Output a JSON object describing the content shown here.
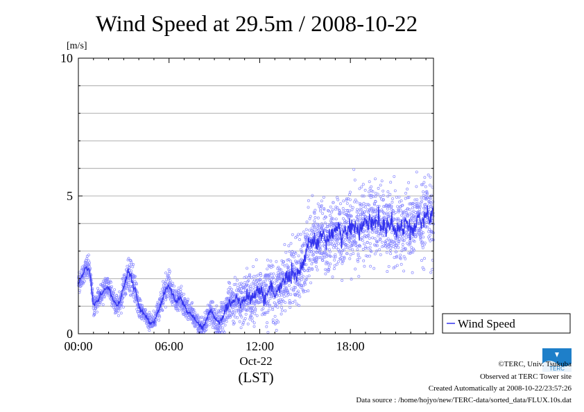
{
  "chart_data": {
    "type": "scatter",
    "title": "Wind Speed at 29.5m / 2008-10-22",
    "ylabel": "[m/s]",
    "ylim": [
      0,
      10
    ],
    "y_ticks": [
      0,
      5,
      10
    ],
    "x_range_hours": [
      0,
      23.5
    ],
    "x_ticks": [
      {
        "hour": 0,
        "label": "00:00"
      },
      {
        "hour": 6,
        "label": "06:00"
      },
      {
        "hour": 12,
        "label": "12:00"
      },
      {
        "hour": 18,
        "label": "18:00"
      }
    ],
    "date_label": "Oct-22",
    "time_zone_label": "(LST)",
    "grid": true,
    "legend": {
      "position": "right",
      "entries": [
        "Wind Speed"
      ]
    },
    "series": [
      {
        "name": "Wind Speed",
        "style": "line over 10-second scatter points",
        "hours": [
          0.0,
          0.25,
          0.5,
          0.75,
          1.0,
          1.25,
          1.5,
          1.75,
          2.0,
          2.25,
          2.5,
          2.75,
          3.0,
          3.25,
          3.5,
          3.75,
          4.0,
          4.25,
          4.5,
          4.75,
          5.0,
          5.25,
          5.5,
          5.75,
          6.0,
          6.25,
          6.5,
          6.75,
          7.0,
          7.25,
          7.5,
          7.75,
          8.0,
          8.25,
          8.5,
          8.75,
          9.0,
          9.25,
          9.5,
          9.75,
          10.0,
          10.25,
          10.5,
          10.75,
          11.0,
          11.25,
          11.5,
          11.75,
          12.0,
          12.25,
          12.5,
          12.75,
          13.0,
          13.25,
          13.5,
          13.75,
          14.0,
          14.25,
          14.5,
          14.75,
          15.0,
          15.25,
          15.5,
          15.75,
          16.0,
          16.25,
          16.5,
          16.75,
          17.0,
          17.25,
          17.5,
          17.75,
          18.0,
          18.25,
          18.5,
          18.75,
          19.0,
          19.25,
          19.5,
          19.75,
          20.0,
          20.25,
          20.5,
          20.75,
          21.0,
          21.25,
          21.5,
          21.75,
          22.0,
          22.25,
          22.5,
          22.75,
          23.0,
          23.25,
          23.5
        ],
        "values": [
          1.8,
          2.1,
          2.4,
          2.3,
          1.0,
          1.2,
          1.4,
          1.6,
          1.7,
          1.3,
          1.0,
          1.2,
          1.7,
          2.2,
          2.1,
          1.6,
          1.0,
          0.8,
          0.6,
          0.4,
          0.4,
          0.8,
          1.1,
          1.6,
          1.7,
          1.4,
          1.2,
          1.3,
          1.0,
          0.8,
          0.7,
          0.5,
          0.3,
          0.2,
          0.5,
          0.9,
          0.6,
          0.4,
          0.6,
          0.9,
          1.1,
          1.2,
          1.3,
          1.1,
          1.3,
          1.4,
          1.2,
          1.5,
          1.6,
          1.3,
          1.5,
          1.8,
          1.3,
          1.6,
          1.9,
          2.0,
          2.1,
          2.2,
          2.1,
          2.4,
          2.8,
          3.2,
          3.4,
          3.2,
          3.5,
          3.5,
          3.4,
          3.6,
          3.7,
          3.7,
          3.5,
          3.8,
          4.0,
          3.9,
          3.8,
          3.9,
          4.0,
          4.1,
          4.0,
          4.2,
          4.1,
          3.9,
          3.8,
          4.0,
          3.7,
          3.9,
          3.8,
          4.0,
          3.6,
          3.9,
          4.2,
          4.0,
          4.4,
          4.2,
          4.3
        ],
        "spread": [
          0.25,
          0.3,
          0.35,
          0.3,
          0.3,
          0.3,
          0.3,
          0.3,
          0.3,
          0.3,
          0.3,
          0.35,
          0.45,
          0.55,
          0.5,
          0.45,
          0.35,
          0.3,
          0.25,
          0.25,
          0.25,
          0.3,
          0.35,
          0.4,
          0.4,
          0.35,
          0.35,
          0.35,
          0.35,
          0.3,
          0.3,
          0.3,
          0.3,
          0.3,
          0.35,
          0.45,
          0.45,
          0.45,
          0.5,
          0.55,
          0.6,
          0.6,
          0.65,
          0.65,
          0.7,
          0.75,
          0.75,
          0.8,
          0.8,
          0.8,
          0.85,
          0.85,
          0.9,
          0.9,
          0.9,
          0.95,
          1.0,
          1.0,
          1.0,
          1.05,
          1.1,
          1.1,
          1.1,
          1.1,
          1.1,
          1.1,
          1.1,
          1.1,
          1.1,
          1.1,
          1.1,
          1.1,
          1.1,
          1.1,
          1.1,
          1.1,
          1.1,
          1.1,
          1.1,
          1.1,
          1.1,
          1.1,
          1.1,
          1.1,
          1.1,
          1.1,
          1.1,
          1.1,
          1.1,
          1.1,
          1.1,
          1.1,
          1.1,
          1.1,
          1.1
        ]
      }
    ]
  },
  "colors": {
    "series": "#3333ee",
    "points": "#8888ff",
    "grid": "#999999",
    "frame": "#000000"
  },
  "footer": {
    "copyright": "©TERC, Univ. Tsukuba",
    "observed": "Observed at TERC Tower site",
    "created": "Created Automatically at 2008-10-22/23:57:26",
    "source": "Data source : /home/hojyo/new/TERC-data/sorted_data/FLUX.10s.dat",
    "logo_text": "TERC"
  }
}
